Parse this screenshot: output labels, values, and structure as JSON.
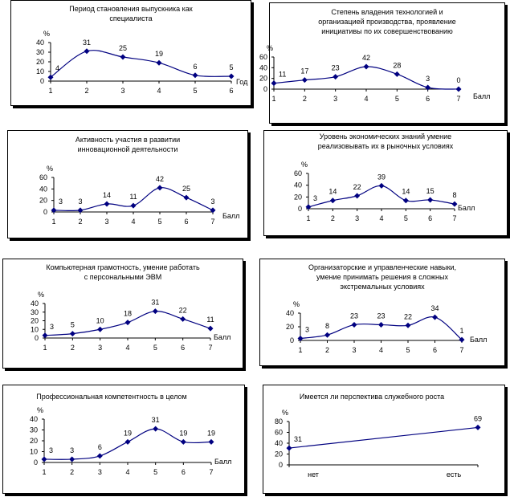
{
  "chart_data": [
    {
      "id": "c1",
      "type": "line",
      "title": "Период становления выпускника как\nспециалиста",
      "ylabel": "%",
      "xlabel": "Год",
      "categories": [
        "1",
        "2",
        "3",
        "4",
        "5",
        "6"
      ],
      "values": [
        4,
        31,
        25,
        19,
        6,
        5
      ],
      "yticks": [
        0,
        10,
        20,
        30,
        40
      ],
      "ylim": [
        0,
        40
      ],
      "grid": false,
      "legend": "none",
      "color": "#000080"
    },
    {
      "id": "c2",
      "type": "line",
      "title": "Степень владения технологией и\nорганизацией производства, проявление\nинициативы по их совершенствованию",
      "ylabel": "%",
      "xlabel": "Балл",
      "categories": [
        "1",
        "2",
        "3",
        "4",
        "5",
        "6",
        "7"
      ],
      "values": [
        11,
        17,
        23,
        42,
        28,
        3,
        0
      ],
      "yticks": [
        0,
        20,
        40,
        60
      ],
      "ylim": [
        0,
        60
      ],
      "grid": false,
      "legend": "none",
      "color": "#000080"
    },
    {
      "id": "c3",
      "type": "line",
      "title": "Активность участия в развитии\nинновационной деятельности",
      "ylabel": "%",
      "xlabel": "Балл",
      "categories": [
        "1",
        "2",
        "3",
        "4",
        "5",
        "6",
        "7"
      ],
      "values": [
        3,
        3,
        14,
        11,
        42,
        25,
        3
      ],
      "yticks": [
        0,
        20,
        40,
        60
      ],
      "ylim": [
        0,
        60
      ],
      "grid": false,
      "legend": "none",
      "color": "#000080"
    },
    {
      "id": "c4",
      "type": "line",
      "title": "Уровень экономических знаний умение\nреализовывать их в рыночных условиях",
      "ylabel": "%",
      "xlabel": "Балл",
      "categories": [
        "1",
        "2",
        "3",
        "4",
        "5",
        "6",
        "7"
      ],
      "values": [
        3,
        14,
        22,
        39,
        14,
        15,
        8
      ],
      "yticks": [
        0,
        20,
        40,
        60
      ],
      "ylim": [
        0,
        60
      ],
      "grid": false,
      "legend": "none",
      "color": "#000080"
    },
    {
      "id": "c5",
      "type": "line",
      "title": "Компьютерная грамотность, умение работать\nс персональными ЭВМ",
      "ylabel": "%",
      "xlabel": "Балл",
      "categories": [
        "1",
        "2",
        "3",
        "4",
        "5",
        "6",
        "7"
      ],
      "values": [
        3,
        5,
        10,
        18,
        31,
        22,
        11
      ],
      "yticks": [
        0,
        10,
        20,
        30,
        40
      ],
      "ylim": [
        0,
        40
      ],
      "grid": false,
      "legend": "none",
      "color": "#000080"
    },
    {
      "id": "c6",
      "type": "line",
      "title": "Организаторские и управленческие навыки,\nумение принимать решения в сложных\nэкстремальных условиях",
      "ylabel": "%",
      "xlabel": "Балл",
      "categories": [
        "1",
        "2",
        "3",
        "4",
        "5",
        "6",
        "7"
      ],
      "values": [
        3,
        8,
        23,
        23,
        22,
        34,
        1
      ],
      "yticks": [
        0,
        20,
        40
      ],
      "ylim": [
        0,
        40
      ],
      "grid": false,
      "legend": "none",
      "color": "#000080"
    },
    {
      "id": "c7",
      "type": "line",
      "title": "Профессиональная компетентность в целом",
      "ylabel": "%",
      "xlabel": "Балл",
      "categories": [
        "1",
        "2",
        "3",
        "4",
        "5",
        "6",
        "7"
      ],
      "values": [
        3,
        3,
        6,
        19,
        31,
        19,
        19
      ],
      "yticks": [
        0,
        10,
        20,
        30,
        40
      ],
      "ylim": [
        0,
        40
      ],
      "grid": false,
      "legend": "none",
      "color": "#000080"
    },
    {
      "id": "c8",
      "type": "line",
      "title": "Имеется ли перспектива служебного роста",
      "ylabel": "%",
      "xlabel": "",
      "categories": [
        "нет",
        "есть"
      ],
      "values": [
        31,
        69
      ],
      "yticks": [
        0,
        20,
        40,
        60,
        80
      ],
      "ylim": [
        0,
        80
      ],
      "grid": false,
      "legend": "none",
      "color": "#000080"
    }
  ]
}
